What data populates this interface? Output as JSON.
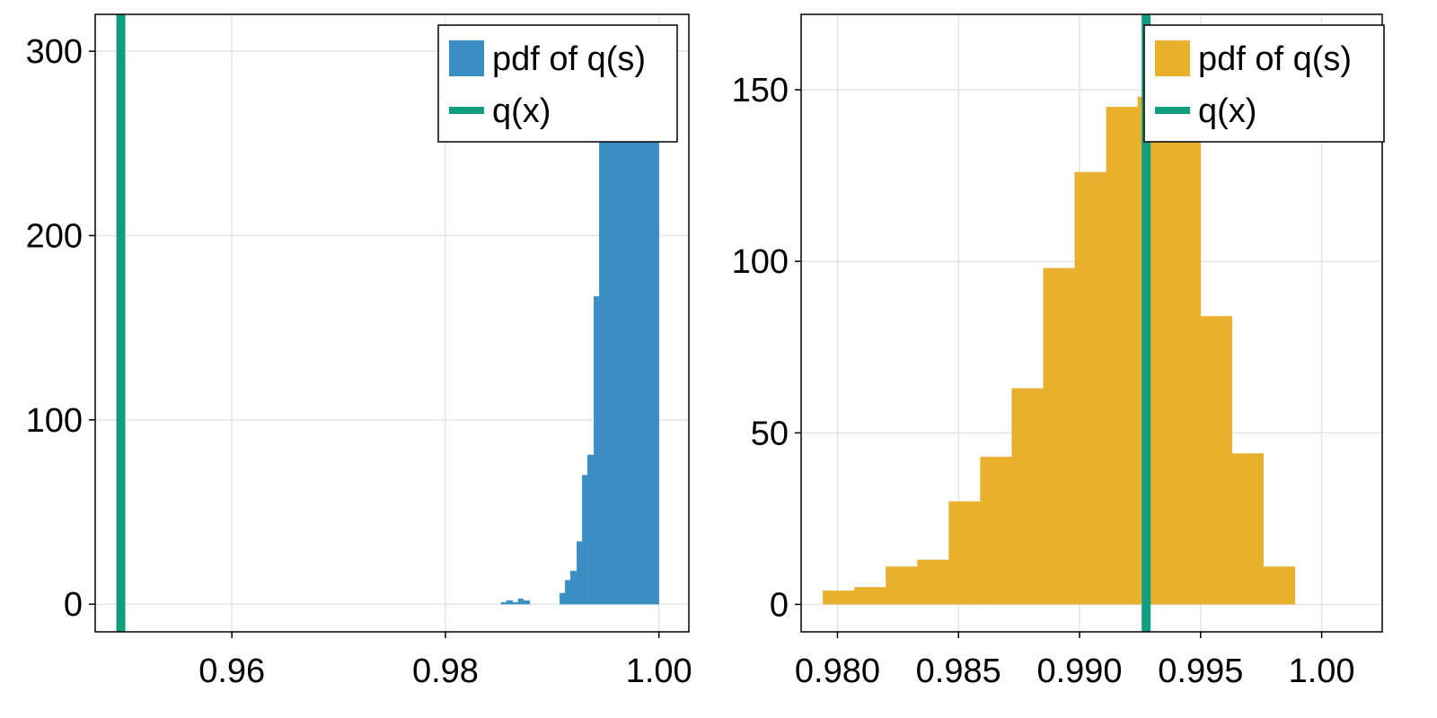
{
  "chart_data": [
    {
      "type": "bar",
      "subtype": "histogram",
      "title": "",
      "xlabel": "",
      "ylabel": "",
      "xlim": [
        0.9472,
        1.0028
      ],
      "ylim": [
        -15,
        320
      ],
      "xticks": [
        0.96,
        0.98,
        1.0
      ],
      "xtick_labels": [
        "0.96",
        "0.98",
        "1.00"
      ],
      "yticks": [
        0,
        100,
        200,
        300
      ],
      "ytick_labels": [
        "0",
        "100",
        "200",
        "300"
      ],
      "grid": true,
      "legend_position": "top-right",
      "color": "#3a8ec4",
      "legend": [
        {
          "label": "pdf of q(s)",
          "kind": "patch",
          "color": "#3a8ec4"
        },
        {
          "label": "q(x)",
          "kind": "line",
          "color": "#129e7e"
        }
      ],
      "vline": {
        "name": "q(x)",
        "x": 0.9496,
        "color": "#129e7e"
      },
      "histogram": {
        "name": "pdf of q(s)",
        "bins": [
          {
            "x0": 0.9852,
            "x1": 0.9857,
            "y": 1
          },
          {
            "x0": 0.9857,
            "x1": 0.9863,
            "y": 2
          },
          {
            "x0": 0.9863,
            "x1": 0.9868,
            "y": 1
          },
          {
            "x0": 0.9868,
            "x1": 0.9873,
            "y": 3
          },
          {
            "x0": 0.9873,
            "x1": 0.9879,
            "y": 2
          },
          {
            "x0": 0.9907,
            "x1": 0.9912,
            "y": 6
          },
          {
            "x0": 0.9912,
            "x1": 0.9917,
            "y": 13
          },
          {
            "x0": 0.9917,
            "x1": 0.9923,
            "y": 18
          },
          {
            "x0": 0.9923,
            "x1": 0.9928,
            "y": 34
          },
          {
            "x0": 0.9928,
            "x1": 0.9933,
            "y": 70
          },
          {
            "x0": 0.9933,
            "x1": 0.9939,
            "y": 81
          },
          {
            "x0": 0.9939,
            "x1": 0.9944,
            "y": 167
          },
          {
            "x0": 0.9944,
            "x1": 1.0,
            "y": 251
          }
        ]
      }
    },
    {
      "type": "bar",
      "subtype": "histogram",
      "title": "",
      "xlabel": "",
      "ylabel": "",
      "xlim": [
        0.9785,
        1.0025
      ],
      "ylim": [
        -8,
        172
      ],
      "xticks": [
        0.98,
        0.985,
        0.99,
        0.995,
        1.0
      ],
      "xtick_labels": [
        "0.980",
        "0.985",
        "0.990",
        "0.995",
        "1.00"
      ],
      "yticks": [
        0,
        50,
        100,
        150
      ],
      "ytick_labels": [
        "0",
        "50",
        "100",
        "150"
      ],
      "grid": true,
      "legend_position": "top-right",
      "color": "#e9b02e",
      "legend": [
        {
          "label": "pdf of q(s)",
          "kind": "patch",
          "color": "#e9b02e"
        },
        {
          "label": "q(x)",
          "kind": "line",
          "color": "#129e7e"
        }
      ],
      "vline": {
        "name": "q(x)",
        "x": 0.99275,
        "color": "#129e7e"
      },
      "histogram": {
        "name": "pdf of q(s)",
        "bins": [
          {
            "x0": 0.9794,
            "x1": 0.9807,
            "y": 4
          },
          {
            "x0": 0.9807,
            "x1": 0.982,
            "y": 5
          },
          {
            "x0": 0.982,
            "x1": 0.9833,
            "y": 11
          },
          {
            "x0": 0.9833,
            "x1": 0.9846,
            "y": 13
          },
          {
            "x0": 0.9846,
            "x1": 0.9859,
            "y": 30
          },
          {
            "x0": 0.9859,
            "x1": 0.9872,
            "y": 43
          },
          {
            "x0": 0.9872,
            "x1": 0.9885,
            "y": 63
          },
          {
            "x0": 0.9885,
            "x1": 0.9898,
            "y": 98
          },
          {
            "x0": 0.9898,
            "x1": 0.9911,
            "y": 126
          },
          {
            "x0": 0.9911,
            "x1": 0.9924,
            "y": 145
          },
          {
            "x0": 0.9924,
            "x1": 0.9937,
            "y": 148
          },
          {
            "x0": 0.9937,
            "x1": 0.995,
            "y": 137
          },
          {
            "x0": 0.995,
            "x1": 0.9963,
            "y": 84
          },
          {
            "x0": 0.9963,
            "x1": 0.9976,
            "y": 44
          },
          {
            "x0": 0.9976,
            "x1": 0.9989,
            "y": 11
          }
        ]
      }
    }
  ]
}
